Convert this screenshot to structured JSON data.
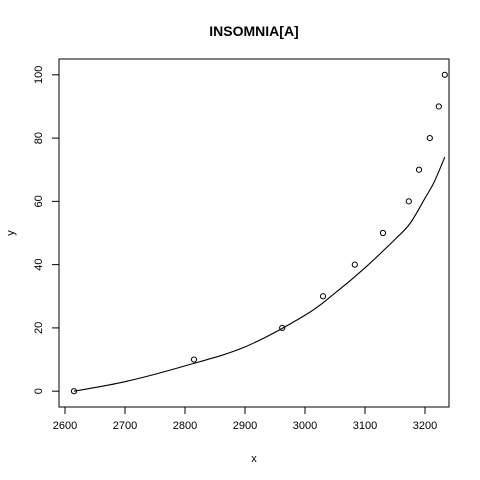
{
  "chart_data": {
    "type": "scatter",
    "title": "INSOMNIA[A]",
    "xlabel": "x",
    "ylabel": "y",
    "xlim": [
      2590,
      3240
    ],
    "ylim": [
      -5,
      105
    ],
    "xticks": [
      2600,
      2700,
      2800,
      2900,
      3000,
      3100,
      3200
    ],
    "yticks": [
      0,
      20,
      40,
      60,
      80,
      100
    ],
    "grid": false,
    "points": {
      "x": [
        2615,
        2815,
        2962,
        3030,
        3083,
        3130,
        3173,
        3190,
        3208,
        3223,
        3233
      ],
      "y": [
        0,
        10,
        20,
        30,
        40,
        50,
        60,
        70,
        80,
        90,
        100
      ]
    },
    "fitted_curve": {
      "x": [
        2615,
        2700,
        2800,
        2900,
        3000,
        3050,
        3100,
        3150,
        3175,
        3200,
        3215,
        3233
      ],
      "y": [
        0,
        3,
        8,
        14,
        24,
        31,
        39,
        48,
        53,
        61,
        66,
        74
      ]
    }
  }
}
